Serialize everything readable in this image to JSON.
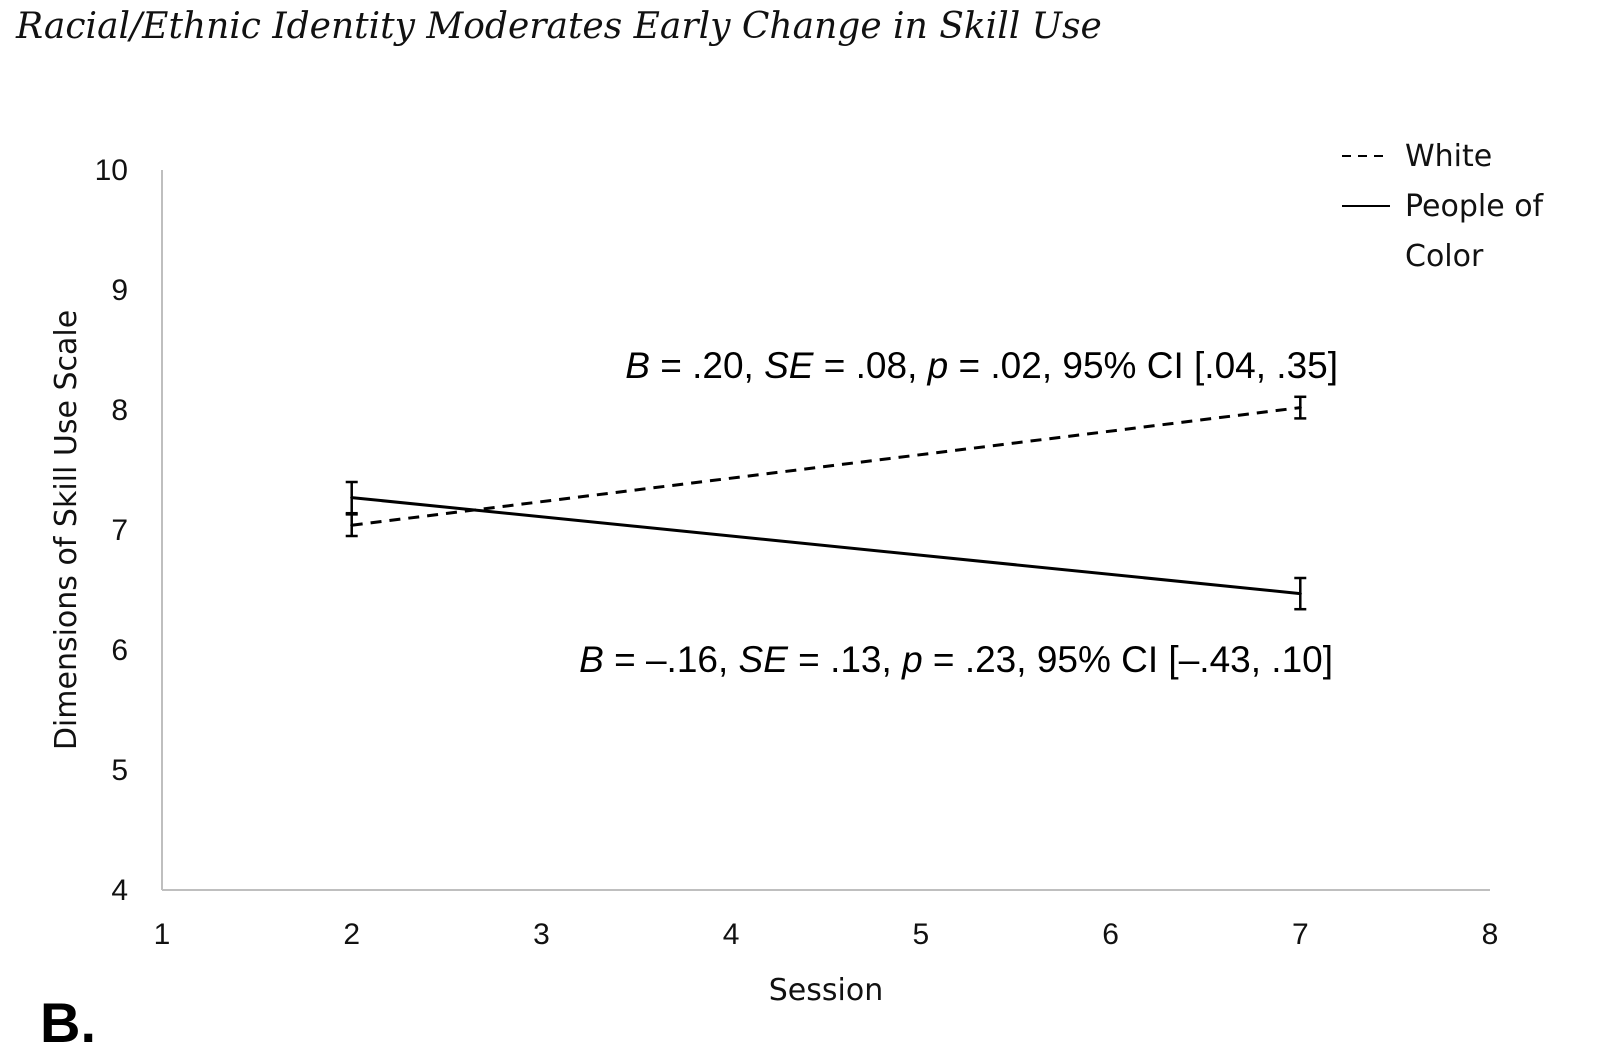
{
  "title": "Racial/Ethnic Identity Moderates Early Change in Skill Use",
  "panel_label": "B.",
  "chart_data": {
    "type": "line",
    "xlabel": "Session",
    "ylabel": "Dimensions of Skill Use Scale",
    "xlim": [
      1,
      8
    ],
    "ylim": [
      4,
      10
    ],
    "xticks": [
      "1",
      "2",
      "3",
      "4",
      "5",
      "6",
      "7",
      "8"
    ],
    "yticks": [
      "4",
      "5",
      "6",
      "7",
      "8",
      "9",
      "10"
    ],
    "grid": false,
    "legend_position": "top-right",
    "series": [
      {
        "name": "White",
        "style": "dashed",
        "x": [
          2,
          7
        ],
        "y": [
          7.04,
          8.02
        ],
        "err": [
          0.09,
          0.09
        ],
        "annotation": {
          "B": "B",
          "B_val": " = .20, ",
          "SE": "SE",
          "SE_val": " = .08, ",
          "p": "p",
          "p_val": " = .02, 95% CI [.04, .35]"
        }
      },
      {
        "name": "People of Color",
        "legend_lines": [
          "People of",
          "Color"
        ],
        "style": "solid",
        "x": [
          2,
          7
        ],
        "y": [
          7.27,
          6.47
        ],
        "err": [
          0.13,
          0.13
        ],
        "annotation": {
          "B": "B",
          "B_val": " = –.16, ",
          "SE": "SE",
          "SE_val": " = .13, ",
          "p": "p",
          "p_val": " = .23, 95% CI [–.43, .10]"
        }
      }
    ]
  }
}
